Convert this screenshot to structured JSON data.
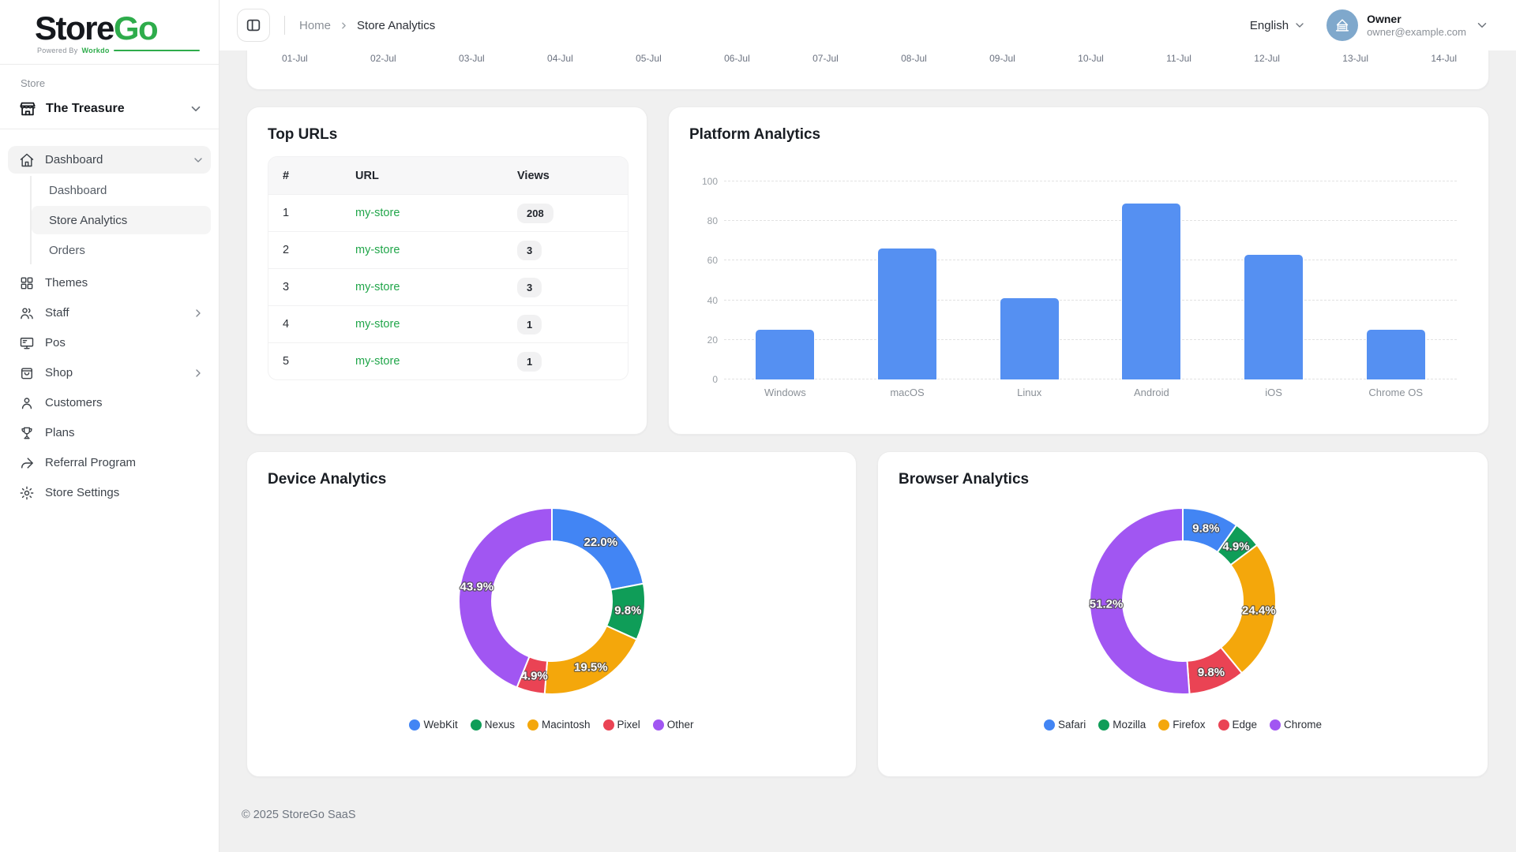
{
  "brand": {
    "name_primary": "Store",
    "name_secondary": "Go",
    "powered_by": "Powered By",
    "powered_brand": "Workdo"
  },
  "header": {
    "breadcrumb": {
      "home": "Home",
      "current": "Store Analytics"
    },
    "language": "English",
    "user": {
      "name": "Owner",
      "email": "owner@example.com"
    }
  },
  "sidebar": {
    "section_label": "Store",
    "store_name": "The Treasure",
    "items": [
      {
        "label": "Dashboard",
        "icon": "home",
        "active": true,
        "chevron": "down",
        "children": [
          {
            "label": "Dashboard",
            "active": false
          },
          {
            "label": "Store Analytics",
            "active": true
          },
          {
            "label": "Orders",
            "active": false
          }
        ]
      },
      {
        "label": "Themes",
        "icon": "grid"
      },
      {
        "label": "Staff",
        "icon": "users",
        "chevron": "right"
      },
      {
        "label": "Pos",
        "icon": "monitor"
      },
      {
        "label": "Shop",
        "icon": "bag",
        "chevron": "right"
      },
      {
        "label": "Customers",
        "icon": "user"
      },
      {
        "label": "Plans",
        "icon": "trophy"
      },
      {
        "label": "Referral Program",
        "icon": "share"
      },
      {
        "label": "Store Settings",
        "icon": "gear"
      }
    ]
  },
  "top_chart": {
    "x_labels": [
      "01-Jul",
      "02-Jul",
      "03-Jul",
      "04-Jul",
      "05-Jul",
      "06-Jul",
      "07-Jul",
      "08-Jul",
      "09-Jul",
      "10-Jul",
      "11-Jul",
      "12-Jul",
      "13-Jul",
      "14-Jul"
    ]
  },
  "top_urls": {
    "title": "Top URLs",
    "columns": [
      "#",
      "URL",
      "Views"
    ],
    "rows": [
      {
        "rank": "1",
        "url": "my-store",
        "views": "208"
      },
      {
        "rank": "2",
        "url": "my-store",
        "views": "3"
      },
      {
        "rank": "3",
        "url": "my-store",
        "views": "3"
      },
      {
        "rank": "4",
        "url": "my-store",
        "views": "1"
      },
      {
        "rank": "5",
        "url": "my-store",
        "views": "1"
      }
    ]
  },
  "chart_data": [
    {
      "id": "platform",
      "type": "bar",
      "title": "Platform Analytics",
      "categories": [
        "Windows",
        "macOS",
        "Linux",
        "Android",
        "iOS",
        "Chrome OS"
      ],
      "values": [
        25,
        66,
        41,
        89,
        63,
        25
      ],
      "ylim": [
        0,
        100
      ],
      "yticks": [
        0,
        20,
        40,
        60,
        80,
        100
      ],
      "bar_color": "#5590F2",
      "grid": true,
      "legend": "none",
      "xlabel": "",
      "ylabel": ""
    },
    {
      "id": "device",
      "type": "pie",
      "title": "Device Analytics",
      "donut": true,
      "labels_format": "percent",
      "legend_position": "bottom",
      "series": [
        {
          "name": "WebKit",
          "value": 22.0,
          "color": "#4285F4"
        },
        {
          "name": "Nexus",
          "value": 9.8,
          "color": "#0F9D58"
        },
        {
          "name": "Macintosh",
          "value": 19.5,
          "color": "#F4A70B"
        },
        {
          "name": "Pixel",
          "value": 4.9,
          "color": "#EA4354"
        },
        {
          "name": "Other",
          "value": 43.9,
          "color": "#A156F2"
        }
      ]
    },
    {
      "id": "browser",
      "type": "pie",
      "title": "Browser Analytics",
      "donut": true,
      "labels_format": "percent",
      "legend_position": "bottom",
      "series": [
        {
          "name": "Safari",
          "value": 9.8,
          "color": "#4285F4"
        },
        {
          "name": "Mozilla",
          "value": 4.9,
          "color": "#0F9D58"
        },
        {
          "name": "Firefox",
          "value": 24.4,
          "color": "#F4A70B"
        },
        {
          "name": "Edge",
          "value": 9.8,
          "color": "#EA4354"
        },
        {
          "name": "Chrome",
          "value": 51.2,
          "color": "#A156F2"
        }
      ]
    }
  ],
  "footer": {
    "copyright": "© 2025 StoreGo SaaS"
  },
  "colors": {
    "accent_green": "#2EAC4B",
    "link_green": "#21A64A",
    "bar_blue": "#5590F2",
    "avatar_bg": "#7FA8CC"
  }
}
